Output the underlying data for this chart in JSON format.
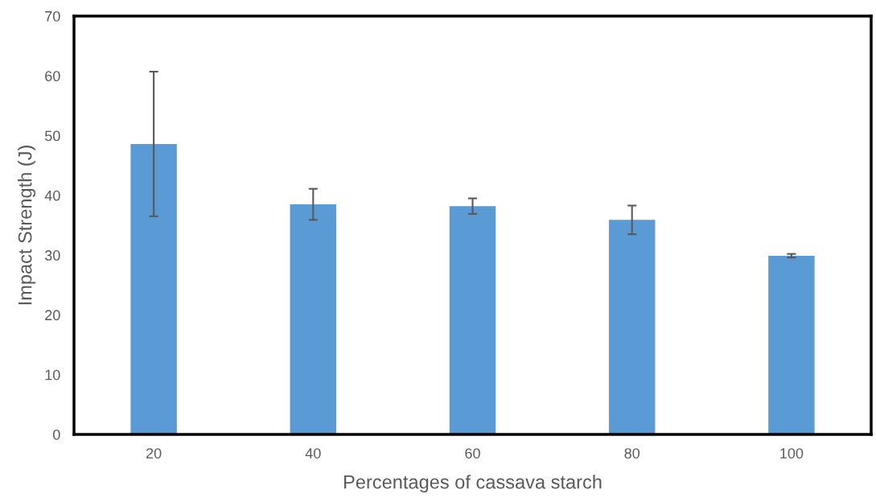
{
  "chart_data": {
    "type": "bar",
    "xlabel": "Percentages of cassava starch",
    "ylabel": "Impact Strength (J)",
    "categories": [
      "20",
      "40",
      "60",
      "80",
      "100"
    ],
    "values": [
      48.6,
      38.5,
      38.2,
      35.9,
      29.9
    ],
    "errors": [
      12.1,
      2.6,
      1.3,
      2.4,
      0.3
    ],
    "color": "#5b9bd5",
    "ylim": [
      0,
      70
    ],
    "yticks": [
      0,
      10,
      20,
      30,
      40,
      50,
      60,
      70
    ],
    "grid": false,
    "legend": false
  }
}
